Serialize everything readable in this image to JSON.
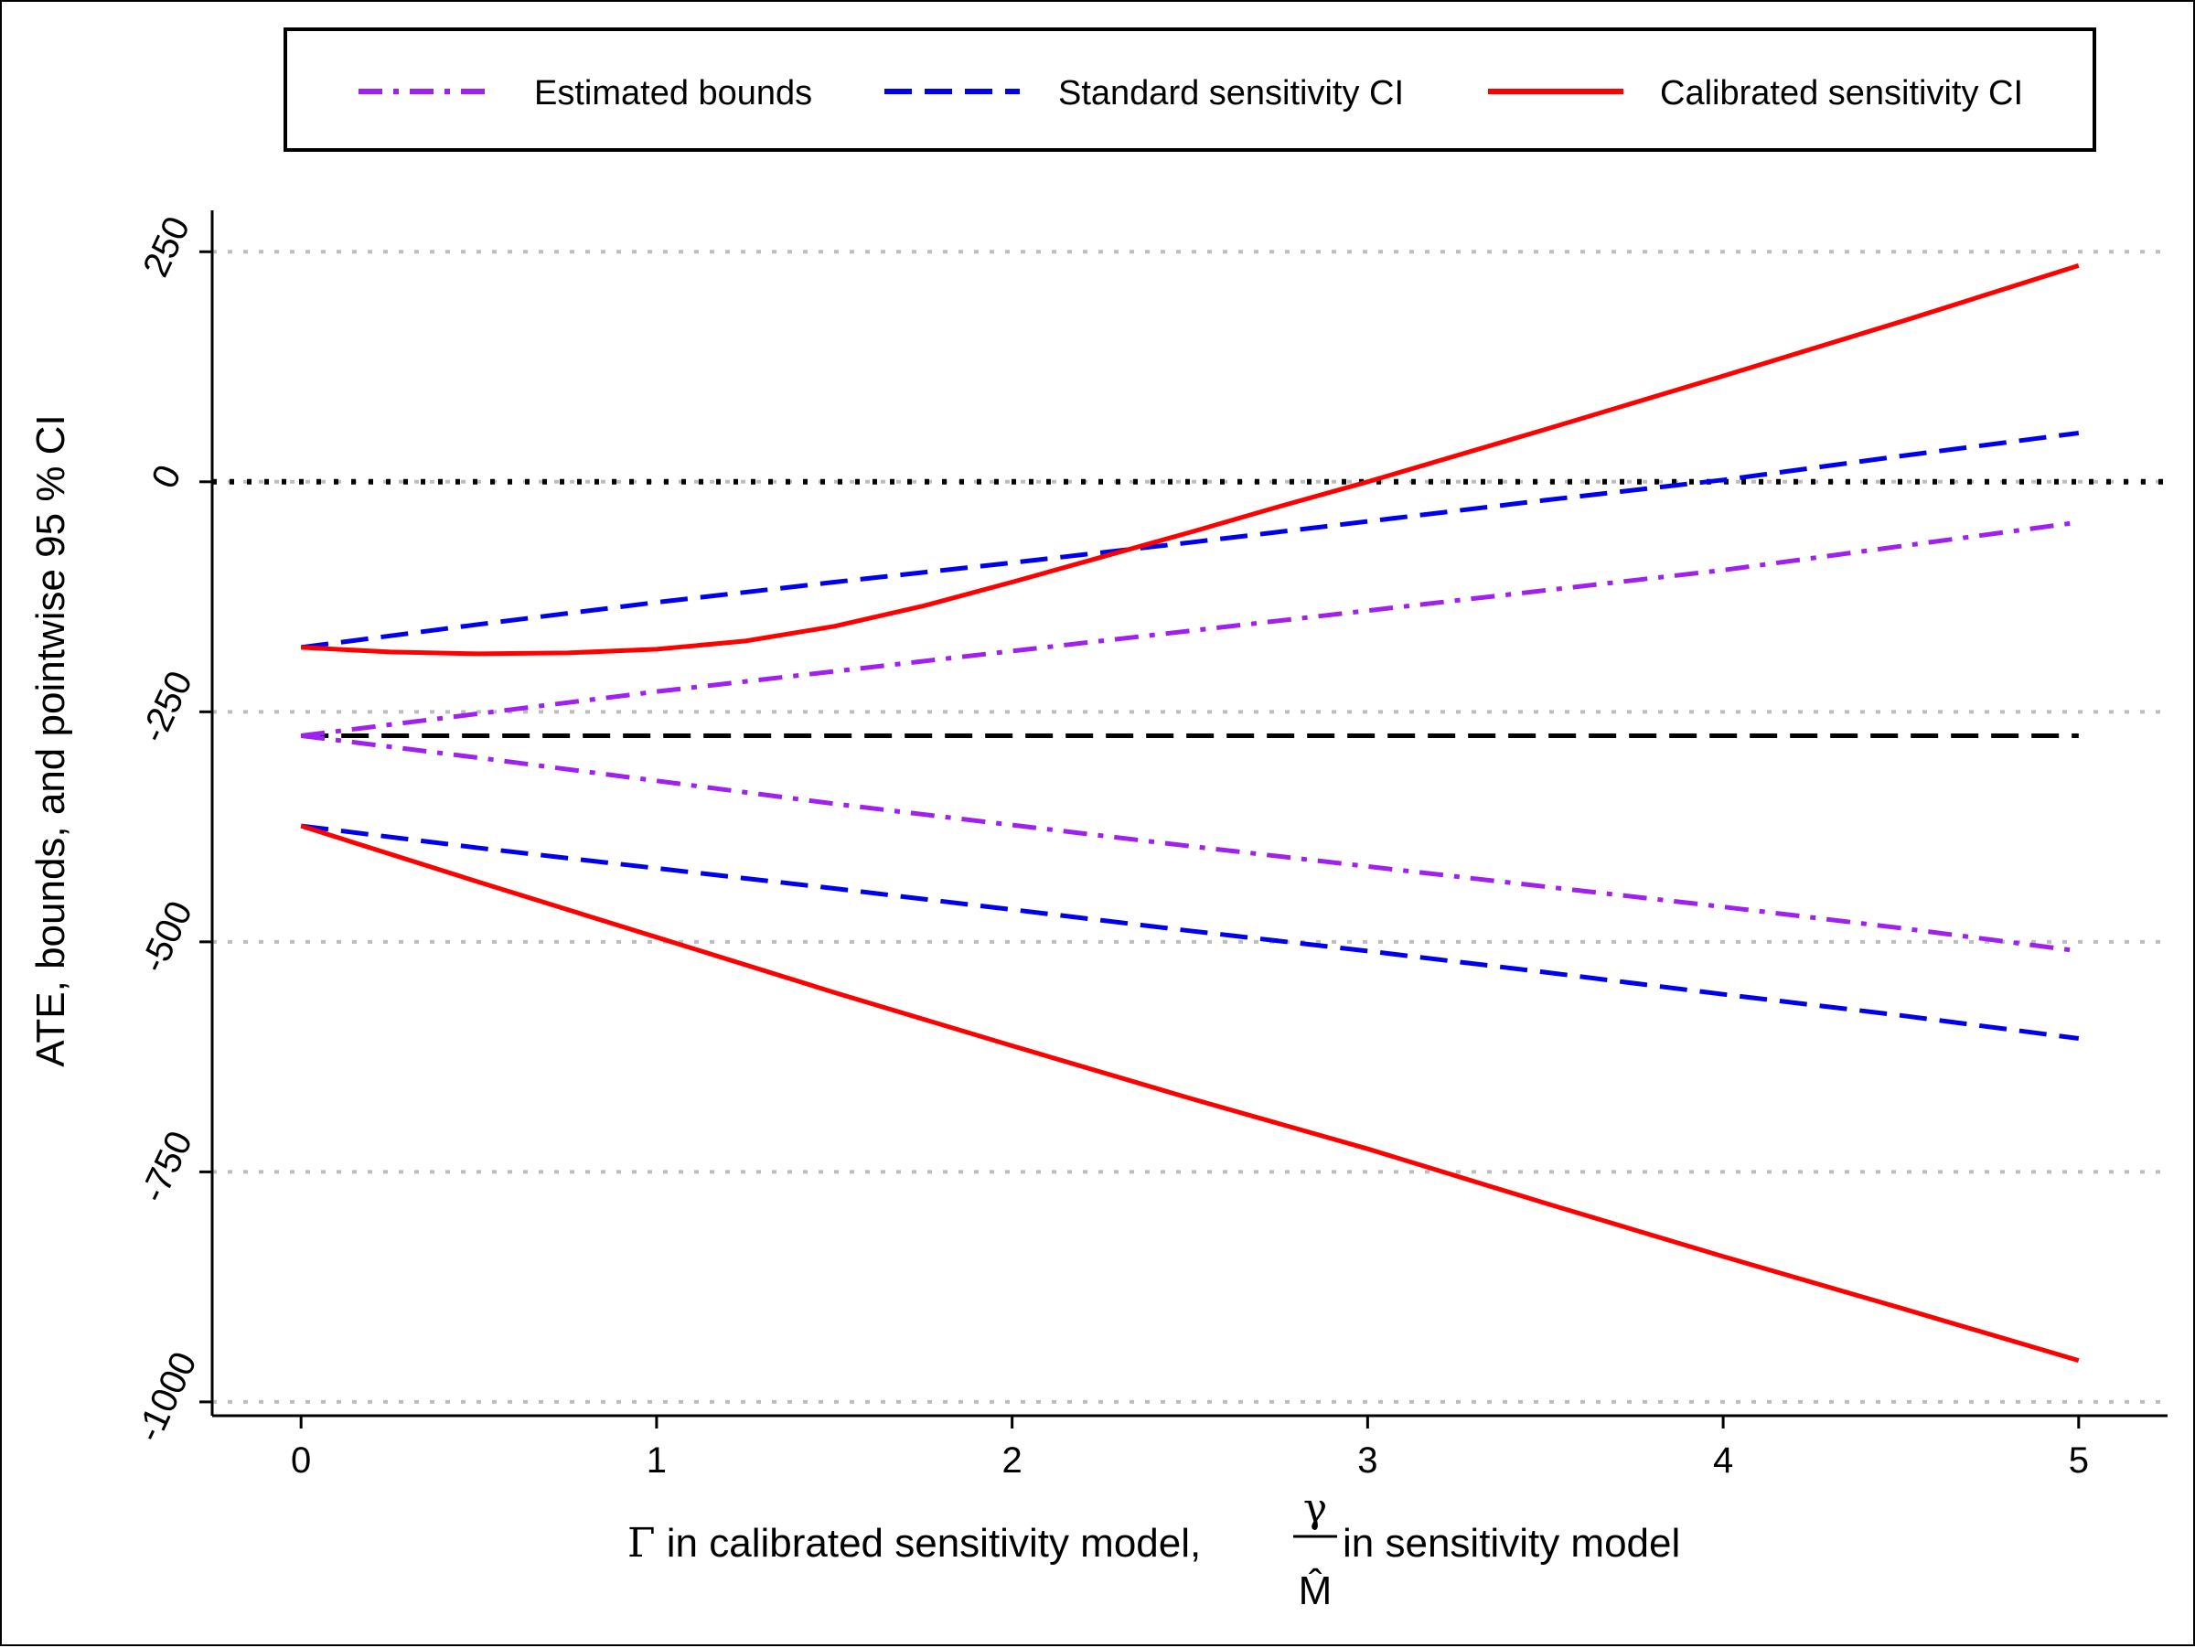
{
  "chart_data": {
    "type": "line",
    "title": "",
    "xlabel": {
      "prefix": "Γ",
      "middle": " in calibrated sensitivity model, ",
      "frac_numerator": "γ",
      "frac_denominator": "M̂",
      "suffix": " in sensitivity model"
    },
    "ylabel": "ATE, bounds, and pointwise 95 % CI",
    "xlim": [
      -0.25,
      5.25
    ],
    "ylim": [
      -1015,
      295
    ],
    "x_ticks": [
      0,
      1,
      2,
      3,
      4,
      5
    ],
    "x_tick_labels": [
      "0",
      "1",
      "2",
      "3",
      "4",
      "5"
    ],
    "y_ticks": [
      250,
      0,
      -250,
      -500,
      -750,
      -1000
    ],
    "y_tick_labels": [
      "250",
      "0",
      "-250",
      "-500",
      "-750",
      "-1000"
    ],
    "grid": "horizontal dotted lines at y ticks",
    "legend": {
      "placement": "top",
      "entries": [
        {
          "label": "Estimated bounds",
          "color": "#a020f0",
          "style": "dashdot"
        },
        {
          "label": "Standard sensitivity CI",
          "color": "#0000ee",
          "style": "dashed"
        },
        {
          "label": "Calibrated sensitivity CI",
          "color": "#ff0000",
          "style": "solid"
        }
      ]
    },
    "reference_lines": [
      {
        "y": 0,
        "color": "#000000",
        "style": "dotted"
      },
      {
        "y": -276,
        "color": "#000000",
        "style": "dashed"
      }
    ],
    "series": [
      {
        "name": "Estimated bounds",
        "color": "#a020f0",
        "style": "dashdot",
        "x": [
          0,
          0.5,
          1,
          1.5,
          2,
          2.5,
          3,
          3.5,
          4,
          4.5,
          5
        ],
        "values": [
          -276,
          -252,
          -228,
          -206,
          -184,
          -162,
          -140,
          -118,
          -96,
          -70,
          -44
        ]
      },
      {
        "name": "Estimated bounds",
        "color": "#a020f0",
        "style": "dashdot",
        "x": [
          0,
          0.5,
          1,
          1.5,
          2,
          2.5,
          3,
          3.5,
          4,
          4.5,
          5
        ],
        "values": [
          -276,
          -300,
          -325,
          -350,
          -373,
          -396,
          -418,
          -440,
          -462,
          -485,
          -510
        ]
      },
      {
        "name": "Standard sensitivity CI",
        "color": "#0000ee",
        "style": "dashed",
        "x": [
          0,
          0.5,
          1,
          1.5,
          2,
          2.5,
          3,
          3.5,
          4,
          4.5,
          5
        ],
        "values": [
          -180,
          -155,
          -131,
          -109,
          -88,
          -66,
          -43,
          -20,
          2,
          28,
          53
        ]
      },
      {
        "name": "Standard sensitivity CI",
        "color": "#0000ee",
        "style": "dashed",
        "x": [
          0,
          0.5,
          1,
          1.5,
          2,
          2.5,
          3,
          3.5,
          4,
          4.5,
          5
        ],
        "values": [
          -374,
          -398,
          -420,
          -442,
          -465,
          -488,
          -510,
          -533,
          -557,
          -580,
          -605
        ]
      },
      {
        "name": "Calibrated sensitivity CI",
        "color": "#ff0000",
        "style": "solid",
        "x": [
          0,
          0.25,
          0.5,
          0.75,
          1,
          1.25,
          1.5,
          1.75,
          2,
          2.25,
          2.5,
          2.75,
          3,
          3.5,
          4,
          4.5,
          5
        ],
        "values": [
          -180,
          -185,
          -187,
          -186,
          -182,
          -173,
          -157,
          -135,
          -109,
          -82,
          -55,
          -27,
          0,
          57,
          115,
          174,
          235
        ]
      },
      {
        "name": "Calibrated sensitivity CI",
        "color": "#ff0000",
        "style": "solid",
        "x": [
          0,
          0.5,
          1,
          1.5,
          2,
          2.5,
          3,
          3.5,
          4,
          4.5,
          5
        ],
        "values": [
          -374,
          -435,
          -495,
          -555,
          -613,
          -670,
          -725,
          -784,
          -842,
          -898,
          -955
        ]
      }
    ]
  }
}
